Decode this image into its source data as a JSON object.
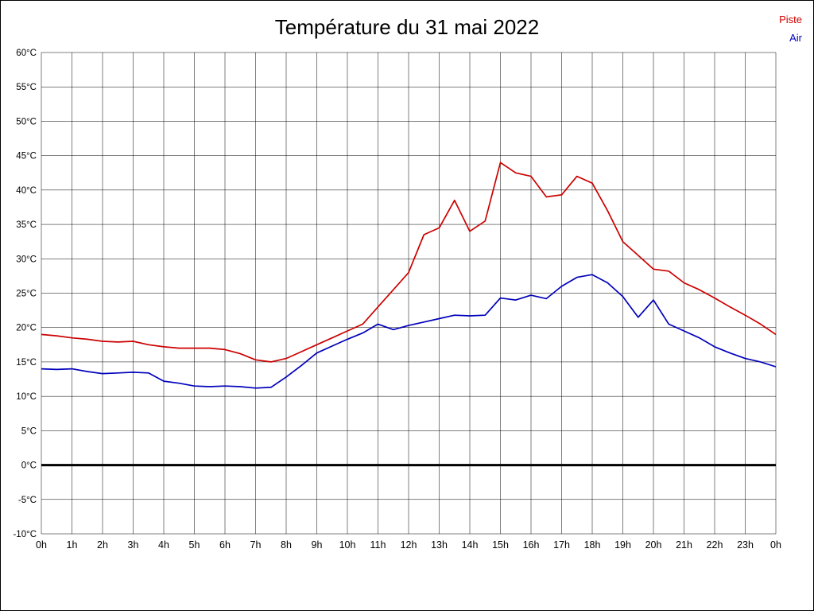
{
  "title": "Température du 31 mai 2022",
  "chart_data": {
    "type": "line",
    "title": "Température du 31 mai 2022",
    "xlabel": "",
    "ylabel": "",
    "x_unit": "hours",
    "ylim": [
      -10,
      60
    ],
    "ytick_step": 5,
    "ytick_label_suffix": "°C",
    "grid": true,
    "zero_line_bold": true,
    "legend_position": "top-right",
    "x_tick_labels": [
      "0h",
      "1h",
      "2h",
      "3h",
      "4h",
      "5h",
      "6h",
      "7h",
      "8h",
      "9h",
      "10h",
      "11h",
      "12h",
      "13h",
      "14h",
      "15h",
      "16h",
      "17h",
      "18h",
      "19h",
      "20h",
      "21h",
      "22h",
      "23h",
      "0h"
    ],
    "x": [
      0,
      0.5,
      1,
      1.5,
      2,
      2.5,
      3,
      3.5,
      4,
      4.5,
      5,
      5.5,
      6,
      6.5,
      7,
      7.5,
      8,
      8.5,
      9,
      9.5,
      10,
      10.5,
      11,
      11.5,
      12,
      12.5,
      13,
      13.5,
      14,
      14.5,
      15,
      15.5,
      16,
      16.5,
      17,
      17.5,
      18,
      18.5,
      19,
      19.5,
      20,
      20.5,
      21,
      21.5,
      22,
      22.5,
      23,
      23.5,
      24
    ],
    "series": [
      {
        "name": "Piste",
        "color": "#cc0000",
        "values": [
          19,
          18.8,
          18.5,
          18.3,
          18,
          17.9,
          18,
          17.5,
          17.2,
          17,
          17,
          17,
          16.8,
          16.2,
          15.3,
          15,
          15.5,
          16.5,
          17.5,
          18.5,
          19.5,
          20.5,
          23,
          25.5,
          28,
          33.5,
          34.5,
          38.5,
          34,
          35.5,
          44,
          42.5,
          42,
          39,
          39.3,
          42,
          41,
          37,
          32.5,
          30.5,
          28.5,
          28.2,
          26.5,
          25.5,
          24.3,
          23,
          21.8,
          20.5,
          19
        ]
      },
      {
        "name": "Air",
        "color": "#0000bb",
        "values": [
          14,
          13.9,
          14,
          13.6,
          13.3,
          13.4,
          13.5,
          13.4,
          12.2,
          11.9,
          11.5,
          11.4,
          11.5,
          11.4,
          11.2,
          11.3,
          12.8,
          14.5,
          16.3,
          17.3,
          18.3,
          19.2,
          20.5,
          19.7,
          20.3,
          20.8,
          21.3,
          21.8,
          21.7,
          21.8,
          24.3,
          24,
          24.7,
          24.2,
          26,
          27.3,
          27.7,
          26.5,
          24.5,
          21.5,
          24,
          20.5,
          19.5,
          18.5,
          17.2,
          16.3,
          15.5,
          15,
          14.3
        ]
      }
    ]
  }
}
